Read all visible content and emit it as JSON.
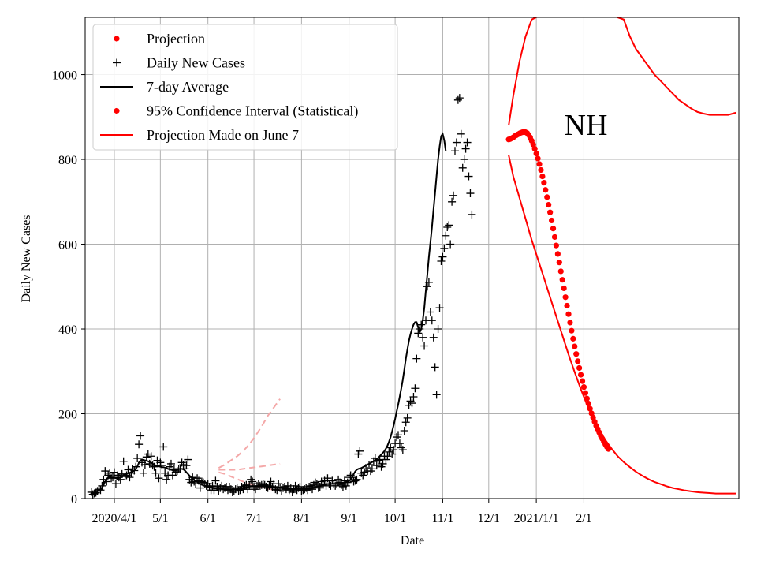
{
  "chart_data": {
    "type": "scatter",
    "region": "NH",
    "xlabel": "Date",
    "ylabel": "Daily New Cases",
    "xlim": [
      -19,
      407
    ],
    "ylim": [
      0,
      1135
    ],
    "grid": true,
    "legend_location": "top-left",
    "x_ticks": [
      {
        "day": 0,
        "label": "2020/4/1"
      },
      {
        "day": 30,
        "label": "5/1"
      },
      {
        "day": 61,
        "label": "6/1"
      },
      {
        "day": 91,
        "label": "7/1"
      },
      {
        "day": 122,
        "label": "8/1"
      },
      {
        "day": 153,
        "label": "9/1"
      },
      {
        "day": 183,
        "label": "10/1"
      },
      {
        "day": 214,
        "label": "11/1"
      },
      {
        "day": 244,
        "label": "12/1"
      },
      {
        "day": 275,
        "label": "2021/1/1"
      },
      {
        "day": 306,
        "label": "2/1"
      }
    ],
    "y_ticks": [
      0,
      200,
      400,
      600,
      800,
      1000
    ],
    "legend": [
      {
        "label": "Projection",
        "marker": "dot",
        "color": "#ff0000"
      },
      {
        "label": "Daily New Cases",
        "marker": "plus",
        "color": "#000000"
      },
      {
        "label": "7-day Average",
        "marker": "line",
        "color": "#000000"
      },
      {
        "label": "95% Confidence Interval (Statistical)",
        "marker": "dot",
        "color": "#ff0000"
      },
      {
        "label": "Projection Made on June 7",
        "marker": "line",
        "color": "#ff0000"
      }
    ],
    "daily_new_cases": {
      "x_start_day": -15,
      "values": [
        15,
        10,
        12,
        14,
        18,
        22,
        20,
        30,
        45,
        65,
        40,
        55,
        60,
        48,
        50,
        62,
        35,
        55,
        50,
        45,
        58,
        88,
        52,
        55,
        68,
        50,
        60,
        70,
        66,
        75,
        95,
        128,
        148,
        85,
        60,
        80,
        98,
        105,
        82,
        100,
        78,
        75,
        60,
        90,
        48,
        85,
        78,
        122,
        60,
        45,
        55,
        75,
        82,
        55,
        70,
        62,
        65,
        70,
        70,
        85,
        80,
        70,
        78,
        92,
        45,
        38,
        50,
        40,
        35,
        48,
        42,
        25,
        40,
        38,
        35,
        30,
        35,
        28,
        20,
        30,
        20,
        42,
        28,
        18,
        25,
        30,
        22,
        25,
        28,
        20,
        28,
        22,
        15,
        18,
        22,
        25,
        18,
        20,
        28,
        22,
        30,
        32,
        22,
        30,
        45,
        40,
        28,
        22,
        30,
        35,
        30,
        32,
        35,
        32,
        28,
        25,
        30,
        40,
        28,
        35,
        22,
        20,
        35,
        25,
        18,
        25,
        28,
        22,
        30,
        20,
        24,
        15,
        22,
        30,
        20,
        25,
        28,
        18,
        20,
        22,
        25,
        20,
        28,
        30,
        22,
        32,
        38,
        35,
        25,
        28,
        40,
        32,
        42,
        30,
        48,
        35,
        30,
        42,
        35,
        30,
        35,
        45,
        38,
        32,
        28,
        42,
        30,
        38,
        50,
        55,
        50,
        40,
        42,
        45,
        105,
        112,
        60,
        55,
        62,
        70,
        65,
        80,
        65,
        70,
        88,
        95,
        78,
        90,
        92,
        75,
        82,
        100,
        92,
        100,
        110,
        120,
        105,
        115,
        130,
        145,
        150,
        130,
        120,
        115,
        160,
        180,
        190,
        220,
        230,
        225,
        240,
        260,
        330,
        390,
        400,
        410,
        380,
        360,
        420,
        500,
        510,
        440,
        420,
        380,
        310,
        245,
        400,
        450,
        560,
        570,
        590,
        620,
        640,
        645,
        600,
        700,
        715,
        820,
        840,
        940,
        945,
        860,
        780,
        800,
        825,
        840,
        760,
        720,
        670
      ]
    },
    "seven_day_average": {
      "x_start_day": -15,
      "values": [
        12,
        13,
        14,
        16,
        18,
        20,
        22,
        26,
        32,
        40,
        45,
        50,
        52,
        50,
        49,
        50,
        48,
        47,
        48,
        50,
        52,
        55,
        57,
        58,
        60,
        61,
        62,
        64,
        66,
        70,
        76,
        84,
        90,
        92,
        91,
        90,
        89,
        88,
        86,
        85,
        82,
        80,
        78,
        77,
        76,
        75,
        74,
        74,
        73,
        72,
        70,
        69,
        68,
        67,
        67,
        68,
        68,
        69,
        70,
        70,
        69,
        66,
        62,
        58,
        54,
        50,
        47,
        44,
        41,
        39,
        37,
        35,
        33,
        31,
        30,
        29,
        28,
        27,
        26,
        25,
        24,
        24,
        23,
        23,
        23,
        23,
        22,
        22,
        22,
        22,
        22,
        22,
        22,
        22,
        22,
        22,
        23,
        23,
        24,
        24,
        25,
        26,
        27,
        28,
        29,
        29,
        29,
        29,
        29,
        29,
        29,
        29,
        29,
        29,
        29,
        28,
        28,
        28,
        28,
        27,
        27,
        27,
        26,
        26,
        26,
        25,
        25,
        25,
        25,
        24,
        24,
        23,
        23,
        23,
        23,
        23,
        23,
        23,
        23,
        23,
        23,
        24,
        24,
        25,
        25,
        26,
        27,
        28,
        29,
        30,
        31,
        32,
        33,
        33,
        34,
        34,
        34,
        35,
        35,
        35,
        35,
        35,
        35,
        36,
        37,
        38,
        39,
        40,
        42,
        44,
        50,
        58,
        64,
        68,
        70,
        71,
        72,
        74,
        76,
        78,
        80,
        82,
        84,
        86,
        88,
        90,
        93,
        96,
        100,
        104,
        108,
        112,
        118,
        125,
        134,
        145,
        158,
        172,
        188,
        205,
        222,
        240,
        260,
        280,
        305,
        330,
        352,
        372,
        388,
        400,
        410,
        416,
        416,
        404,
        392,
        400,
        420,
        450,
        490,
        530,
        570,
        605,
        640,
        680,
        720,
        760,
        800,
        830,
        855,
        860,
        845,
        820
      ]
    },
    "projection": {
      "x_start_day": 257,
      "values": [
        847,
        848,
        850,
        852,
        855,
        857,
        859,
        861,
        863,
        864,
        865,
        864,
        862,
        858,
        852,
        844,
        835,
        825,
        814,
        802,
        789,
        775,
        760,
        745,
        728,
        711,
        693,
        675,
        656,
        637,
        617,
        597,
        577,
        557,
        536,
        516,
        496,
        475,
        455,
        435,
        415,
        396,
        377,
        359,
        341,
        324,
        308,
        292,
        277,
        263,
        249,
        236,
        224,
        212,
        201,
        191,
        181,
        172,
        164,
        156,
        148,
        141,
        134,
        128,
        122,
        117
      ]
    },
    "projection_june7": {
      "x_start_day": 68,
      "values": [
        70,
        72,
        74,
        76,
        78,
        80,
        82,
        84,
        86,
        88,
        90,
        92,
        94,
        96,
        98,
        100,
        102,
        104,
        106,
        108,
        110,
        112,
        114,
        116,
        118,
        120
      ]
    },
    "confidence_interval": {
      "upper": {
        "x": [
          257,
          260,
          264,
          268,
          272,
          275
        ],
        "y": [
          880,
          950,
          1030,
          1090,
          1130,
          1135
        ]
      },
      "lower": {
        "x": [
          257,
          260,
          264,
          268,
          272,
          276,
          280,
          284,
          288,
          292,
          296,
          300,
          304,
          308,
          312,
          316,
          320,
          324,
          328,
          332,
          336,
          340,
          344,
          348,
          352,
          356,
          360,
          364,
          368,
          372,
          376,
          380,
          384,
          388,
          392,
          396,
          400,
          405
        ],
        "y": [
          810,
          760,
          710,
          660,
          610,
          565,
          520,
          475,
          430,
          385,
          340,
          298,
          258,
          222,
          190,
          162,
          138,
          118,
          100,
          86,
          74,
          63,
          54,
          46,
          39,
          34,
          29,
          25,
          22,
          19,
          17,
          15,
          14,
          13,
          12,
          12,
          12,
          12
        ]
      },
      "upper_right": {
        "x": [
          328,
          332,
          336,
          340,
          344,
          348,
          352,
          356,
          360,
          364,
          368,
          372,
          376,
          380,
          384,
          388,
          392,
          396,
          400,
          405
        ],
        "y": [
          1135,
          1130,
          1090,
          1060,
          1040,
          1020,
          1000,
          985,
          970,
          955,
          940,
          930,
          920,
          912,
          908,
          905,
          905,
          905,
          905,
          910
        ]
      }
    },
    "early_projection_band": {
      "upper": {
        "x": [
          68,
          72,
          76,
          80,
          84,
          88,
          92,
          96,
          100,
          104,
          108
        ],
        "y": [
          72,
          80,
          90,
          100,
          112,
          128,
          148,
          170,
          195,
          215,
          235
        ]
      },
      "lower": {
        "x": [
          68,
          72,
          76,
          80,
          84,
          88,
          92,
          96,
          100,
          104,
          108
        ],
        "y": [
          62,
          58,
          52,
          46,
          40,
          35,
          30,
          26,
          23,
          21,
          20
        ]
      },
      "middle": {
        "x": [
          68,
          72,
          76,
          80,
          84,
          88,
          92,
          96,
          100,
          104,
          108
        ],
        "y": [
          68,
          68,
          68,
          68,
          70,
          72,
          74,
          76,
          78,
          80,
          82
        ]
      }
    }
  }
}
